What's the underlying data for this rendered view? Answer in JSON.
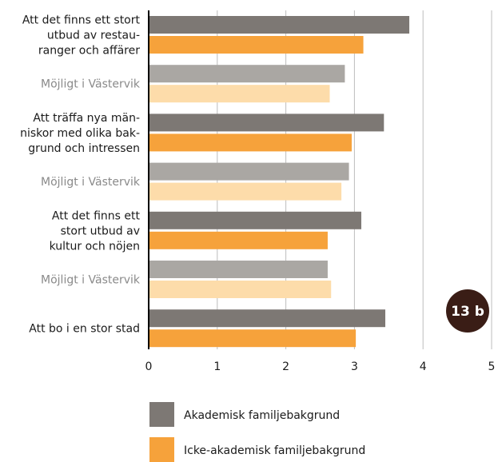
{
  "chart_data": {
    "type": "bar",
    "orientation": "horizontal",
    "categories": [
      [
        "Att det finns ett stort",
        "utbud av restau-",
        "ranger och affärer"
      ],
      [
        "Möjligt i Västervik"
      ],
      [
        "Att träffa nya män-",
        "niskor med olika bak-",
        "grund och intressen"
      ],
      [
        "Möjligt i Västervik"
      ],
      [
        "Att det finns ett",
        "stort utbud av",
        "kultur och nöjen"
      ],
      [
        "Möjligt i Västervik"
      ],
      [
        "Att bo i en stor stad"
      ]
    ],
    "category_kind": [
      "main",
      "sub",
      "main",
      "sub",
      "main",
      "sub",
      "main"
    ],
    "series": [
      {
        "name": "Akademisk familjebakgrund",
        "values": [
          3.8,
          2.86,
          3.43,
          2.92,
          3.1,
          2.61,
          3.45
        ]
      },
      {
        "name": "Icke-akademisk familjebakgrund",
        "values": [
          3.13,
          2.64,
          2.96,
          2.81,
          2.61,
          2.66,
          3.02
        ]
      }
    ],
    "xlim": [
      0,
      5
    ],
    "xticks": [
      "0",
      "1",
      "2",
      "3",
      "4",
      "5"
    ],
    "grid": true,
    "legend_position": "bottom",
    "badge": "13 b"
  },
  "colors": {
    "academic_main": "#7d7874",
    "academic_sub": "#aaa7a3",
    "nonacademic_main": "#f6a23b",
    "nonacademic_sub": "#fddcaa",
    "badge": "#3a1d16",
    "axis": "#000000",
    "grid": "#bdbdbd"
  }
}
